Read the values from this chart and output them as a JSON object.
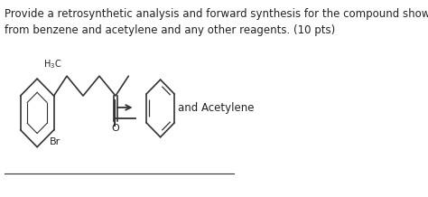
{
  "title_text": "Provide a retrosynthetic analysis and forward synthesis for the compound shown below starting\nfrom benzene and acetylene and any other reagents. (10 pts)",
  "title_fontsize": 8.5,
  "and_acetylene_text": "and Acetylene",
  "background_color": "#ffffff",
  "text_color": "#222222",
  "line_color": "#333333",
  "figsize": [
    4.74,
    2.18
  ],
  "dpi": 100
}
